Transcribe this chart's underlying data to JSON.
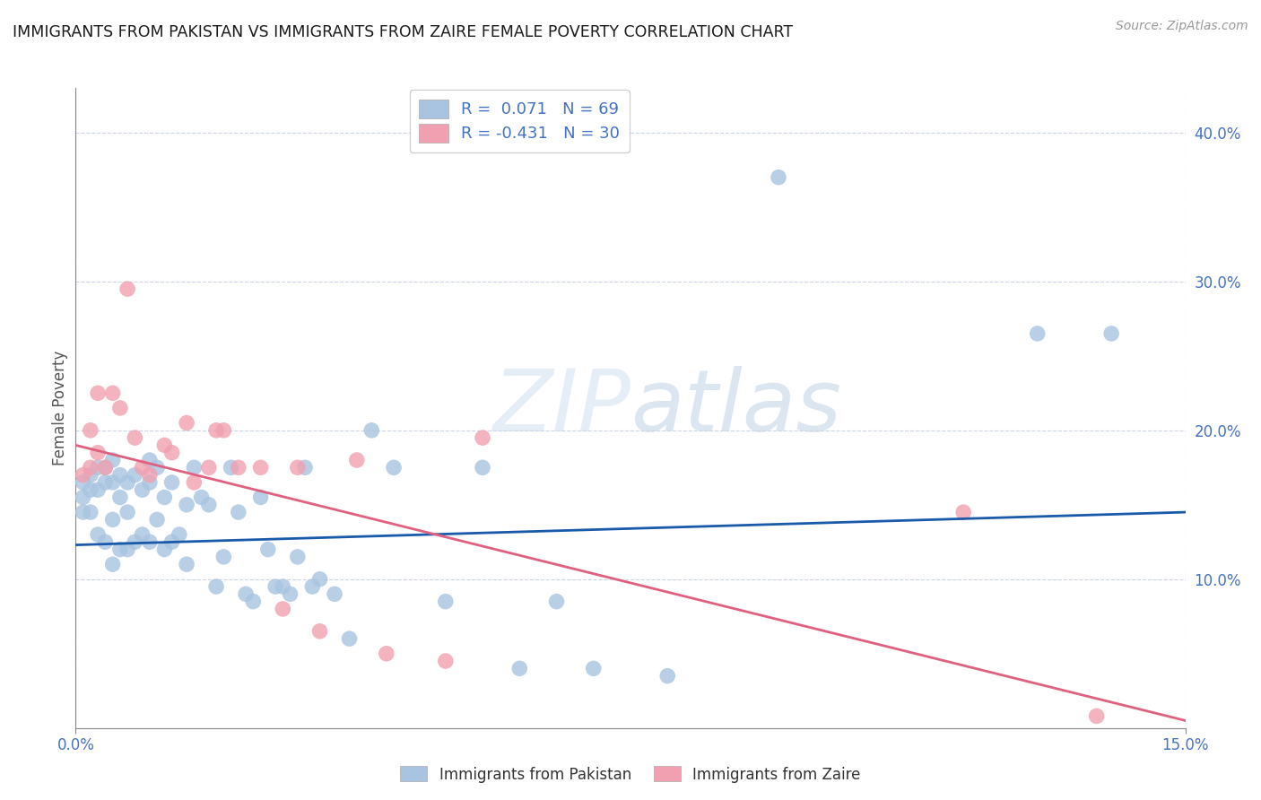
{
  "title": "IMMIGRANTS FROM PAKISTAN VS IMMIGRANTS FROM ZAIRE FEMALE POVERTY CORRELATION CHART",
  "source": "Source: ZipAtlas.com",
  "ylabel": "Female Poverty",
  "yticks": [
    0.1,
    0.2,
    0.3,
    0.4
  ],
  "ytick_labels": [
    "10.0%",
    "20.0%",
    "30.0%",
    "40.0%"
  ],
  "xlim": [
    0.0,
    0.15
  ],
  "ylim": [
    0.0,
    0.43
  ],
  "R_pakistan": 0.071,
  "N_pakistan": 69,
  "R_zaire": -0.431,
  "N_zaire": 30,
  "pakistan_color": "#a8c4e0",
  "zaire_color": "#f0a0b0",
  "pakistan_line_color": "#1a5aaa",
  "zaire_line_color": "#e06080",
  "watermark_zip": "ZIP",
  "watermark_atlas": "atlas",
  "pak_line_x0": 0.0,
  "pak_line_y0": 0.123,
  "pak_line_x1": 0.15,
  "pak_line_y1": 0.145,
  "zaire_line_x0": 0.0,
  "zaire_line_y0": 0.19,
  "zaire_line_x1": 0.15,
  "zaire_line_y1": 0.005,
  "pakistan_points_x": [
    0.001,
    0.001,
    0.001,
    0.002,
    0.002,
    0.002,
    0.003,
    0.003,
    0.003,
    0.004,
    0.004,
    0.004,
    0.005,
    0.005,
    0.005,
    0.005,
    0.006,
    0.006,
    0.006,
    0.007,
    0.007,
    0.007,
    0.008,
    0.008,
    0.009,
    0.009,
    0.01,
    0.01,
    0.01,
    0.011,
    0.011,
    0.012,
    0.012,
    0.013,
    0.013,
    0.014,
    0.015,
    0.015,
    0.016,
    0.017,
    0.018,
    0.019,
    0.02,
    0.021,
    0.022,
    0.023,
    0.024,
    0.025,
    0.026,
    0.027,
    0.028,
    0.029,
    0.03,
    0.031,
    0.032,
    0.033,
    0.035,
    0.037,
    0.04,
    0.043,
    0.05,
    0.055,
    0.06,
    0.065,
    0.07,
    0.08,
    0.095,
    0.13,
    0.14
  ],
  "pakistan_points_y": [
    0.165,
    0.155,
    0.145,
    0.17,
    0.16,
    0.145,
    0.175,
    0.16,
    0.13,
    0.175,
    0.165,
    0.125,
    0.18,
    0.165,
    0.14,
    0.11,
    0.17,
    0.155,
    0.12,
    0.165,
    0.145,
    0.12,
    0.17,
    0.125,
    0.16,
    0.13,
    0.18,
    0.165,
    0.125,
    0.175,
    0.14,
    0.155,
    0.12,
    0.165,
    0.125,
    0.13,
    0.15,
    0.11,
    0.175,
    0.155,
    0.15,
    0.095,
    0.115,
    0.175,
    0.145,
    0.09,
    0.085,
    0.155,
    0.12,
    0.095,
    0.095,
    0.09,
    0.115,
    0.175,
    0.095,
    0.1,
    0.09,
    0.06,
    0.2,
    0.175,
    0.085,
    0.175,
    0.04,
    0.085,
    0.04,
    0.035,
    0.37,
    0.265,
    0.265
  ],
  "zaire_points_x": [
    0.001,
    0.002,
    0.002,
    0.003,
    0.003,
    0.004,
    0.005,
    0.006,
    0.007,
    0.008,
    0.009,
    0.01,
    0.012,
    0.013,
    0.015,
    0.016,
    0.018,
    0.019,
    0.02,
    0.022,
    0.025,
    0.028,
    0.03,
    0.033,
    0.038,
    0.042,
    0.05,
    0.055,
    0.12,
    0.138
  ],
  "zaire_points_y": [
    0.17,
    0.175,
    0.2,
    0.185,
    0.225,
    0.175,
    0.225,
    0.215,
    0.295,
    0.195,
    0.175,
    0.17,
    0.19,
    0.185,
    0.205,
    0.165,
    0.175,
    0.2,
    0.2,
    0.175,
    0.175,
    0.08,
    0.175,
    0.065,
    0.18,
    0.05,
    0.045,
    0.195,
    0.145,
    0.008
  ]
}
